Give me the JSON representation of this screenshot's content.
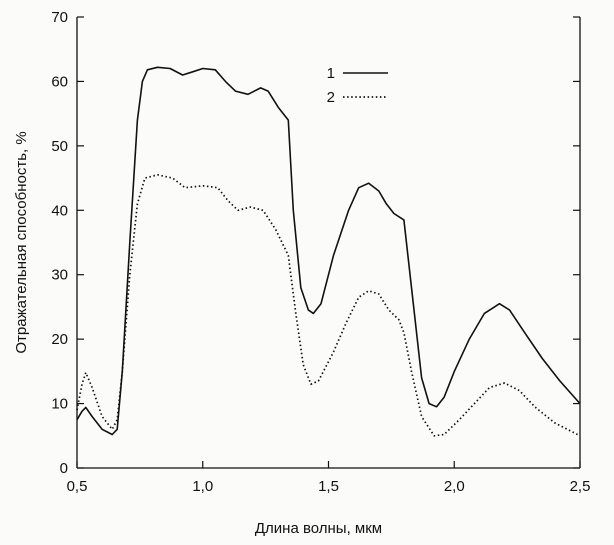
{
  "chart_data": {
    "type": "line",
    "xlabel": "Длина волны, мкм",
    "ylabel": "Отражательная способность, %",
    "xlim": [
      0.5,
      2.5
    ],
    "ylim": [
      0,
      70
    ],
    "x_ticks": [
      0.5,
      1.0,
      1.5,
      2.0,
      2.5
    ],
    "x_tick_labels": [
      "0,5",
      "1,0",
      "1,5",
      "2,0",
      "2,5"
    ],
    "y_ticks": [
      0,
      10,
      20,
      30,
      40,
      50,
      60,
      70
    ],
    "y_tick_labels": [
      "0",
      "10",
      "20",
      "30",
      "40",
      "50",
      "60",
      "70"
    ],
    "grid": false,
    "legend": "top-center",
    "series": [
      {
        "name": "1",
        "style": "solid",
        "color": "#111111",
        "points": [
          [
            0.5,
            7.5
          ],
          [
            0.52,
            8.8
          ],
          [
            0.535,
            9.4
          ],
          [
            0.56,
            8.0
          ],
          [
            0.6,
            6.0
          ],
          [
            0.64,
            5.2
          ],
          [
            0.66,
            6.0
          ],
          [
            0.68,
            15.0
          ],
          [
            0.71,
            35.0
          ],
          [
            0.74,
            54.0
          ],
          [
            0.76,
            60.0
          ],
          [
            0.78,
            61.8
          ],
          [
            0.82,
            62.2
          ],
          [
            0.87,
            62.0
          ],
          [
            0.92,
            61.0
          ],
          [
            0.96,
            61.5
          ],
          [
            1.0,
            62.0
          ],
          [
            1.05,
            61.8
          ],
          [
            1.09,
            60.0
          ],
          [
            1.13,
            58.5
          ],
          [
            1.18,
            58.0
          ],
          [
            1.23,
            59.0
          ],
          [
            1.26,
            58.5
          ],
          [
            1.3,
            56.0
          ],
          [
            1.34,
            54.0
          ],
          [
            1.36,
            40.0
          ],
          [
            1.39,
            28.0
          ],
          [
            1.42,
            24.5
          ],
          [
            1.44,
            24.0
          ],
          [
            1.47,
            25.5
          ],
          [
            1.52,
            33.0
          ],
          [
            1.58,
            40.0
          ],
          [
            1.62,
            43.5
          ],
          [
            1.66,
            44.2
          ],
          [
            1.7,
            43.0
          ],
          [
            1.73,
            41.0
          ],
          [
            1.76,
            39.5
          ],
          [
            1.8,
            38.5
          ],
          [
            1.83,
            28.0
          ],
          [
            1.87,
            14.0
          ],
          [
            1.9,
            10.0
          ],
          [
            1.93,
            9.5
          ],
          [
            1.96,
            11.0
          ],
          [
            2.0,
            15.0
          ],
          [
            2.06,
            20.0
          ],
          [
            2.12,
            24.0
          ],
          [
            2.18,
            25.5
          ],
          [
            2.22,
            24.5
          ],
          [
            2.28,
            21.0
          ],
          [
            2.35,
            17.0
          ],
          [
            2.42,
            13.5
          ],
          [
            2.5,
            10.0
          ]
        ]
      },
      {
        "name": "2",
        "style": "dotted",
        "color": "#111111",
        "points": [
          [
            0.5,
            9.0
          ],
          [
            0.52,
            13.0
          ],
          [
            0.535,
            14.8
          ],
          [
            0.56,
            12.5
          ],
          [
            0.6,
            8.0
          ],
          [
            0.64,
            6.0
          ],
          [
            0.66,
            7.5
          ],
          [
            0.68,
            15.0
          ],
          [
            0.71,
            30.0
          ],
          [
            0.74,
            41.0
          ],
          [
            0.77,
            45.0
          ],
          [
            0.82,
            45.5
          ],
          [
            0.88,
            45.0
          ],
          [
            0.93,
            43.5
          ],
          [
            1.0,
            43.8
          ],
          [
            1.06,
            43.5
          ],
          [
            1.1,
            41.5
          ],
          [
            1.14,
            40.0
          ],
          [
            1.19,
            40.5
          ],
          [
            1.24,
            40.0
          ],
          [
            1.29,
            37.0
          ],
          [
            1.34,
            33.0
          ],
          [
            1.37,
            24.0
          ],
          [
            1.4,
            16.0
          ],
          [
            1.43,
            13.0
          ],
          [
            1.46,
            13.5
          ],
          [
            1.52,
            18.0
          ],
          [
            1.57,
            22.5
          ],
          [
            1.62,
            26.5
          ],
          [
            1.66,
            27.5
          ],
          [
            1.7,
            27.0
          ],
          [
            1.74,
            24.5
          ],
          [
            1.78,
            23.0
          ],
          [
            1.8,
            21.0
          ],
          [
            1.83,
            15.0
          ],
          [
            1.87,
            8.0
          ],
          [
            1.92,
            5.0
          ],
          [
            1.96,
            5.2
          ],
          [
            2.02,
            7.5
          ],
          [
            2.08,
            10.0
          ],
          [
            2.14,
            12.5
          ],
          [
            2.2,
            13.2
          ],
          [
            2.26,
            12.0
          ],
          [
            2.32,
            9.5
          ],
          [
            2.4,
            7.0
          ],
          [
            2.5,
            5.0
          ]
        ]
      }
    ]
  }
}
